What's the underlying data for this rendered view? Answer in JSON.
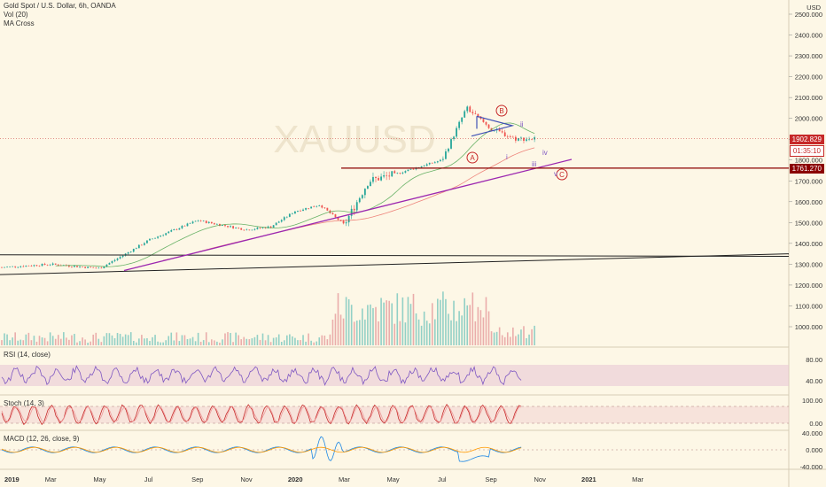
{
  "legend": {
    "symbol": "Gold Spot / U.S. Dollar, 6h, OANDA",
    "vol": "Vol (20)",
    "ma": "MA Cross"
  },
  "currency": "USD",
  "watermark": "XAUUSD",
  "price_tags": {
    "last": "1902.829",
    "countdown": "01:35:10",
    "line": "1761.270"
  },
  "panels": {
    "rsi": "RSI (14, close)",
    "stoch": "Stoch (14, 3)",
    "macd": "MACD (12, 26, close, 9)"
  },
  "wave_labels": {
    "A": "A",
    "B": "B",
    "C": "C",
    "i": "i",
    "ii": "ii",
    "iii": "iii",
    "iv": "iv",
    "v": "v"
  },
  "colors": {
    "background": "#fdf7e6",
    "up": "#26a69a",
    "down": "#ef5350",
    "trend": "#9c27b0",
    "resistance": "#8b0000",
    "rsi": "#7e57c2",
    "stoch": "#c62828",
    "macd": "#1e88e5"
  },
  "chart_data": [
    {
      "type": "line",
      "name_shown": "Gold Spot / U.S. Dollar, 6h, OANDA",
      "x": [
        "2019-01",
        "2019-03",
        "2019-05",
        "2019-06",
        "2019-07",
        "2019-09",
        "2019-11",
        "2019-12",
        "2020-01",
        "2020-02",
        "2020-03",
        "2020-04",
        "2020-05",
        "2020-07",
        "2020-08",
        "2020-09",
        "2020-10"
      ],
      "y": [
        1285,
        1300,
        1280,
        1345,
        1415,
        1510,
        1465,
        1480,
        1555,
        1585,
        1490,
        1700,
        1730,
        1800,
        2050,
        1950,
        1902
      ],
      "ylim": [
        900,
        2520
      ],
      "y_ticks": [
        "2500.000",
        "2400.000",
        "2300.000",
        "2200.000",
        "2100.000",
        "2000.000",
        "1900.000",
        "1800.000",
        "1700.000",
        "1600.000",
        "1500.000",
        "1400.000",
        "1300.000",
        "1200.000",
        "1100.000",
        "1000.000"
      ],
      "x_ticks": [
        "2019",
        "Mar",
        "May",
        "Jul",
        "Sep",
        "Nov",
        "2020",
        "Mar",
        "May",
        "Jul",
        "Sep",
        "Nov",
        "2021",
        "Mar"
      ],
      "horizontal_line": 1761.27,
      "last_price": 1902.829
    },
    {
      "type": "line",
      "name": "RSI (14, close)",
      "y_ticks": [
        "80.00",
        "40.00"
      ]
    },
    {
      "type": "line",
      "name": "Stoch (14, 3)",
      "y_ticks": [
        "100.00",
        "0.00"
      ]
    },
    {
      "type": "line",
      "name": "MACD (12, 26, close, 9)",
      "y_ticks": [
        "40.000",
        "0.000",
        "-40.000"
      ]
    }
  ]
}
